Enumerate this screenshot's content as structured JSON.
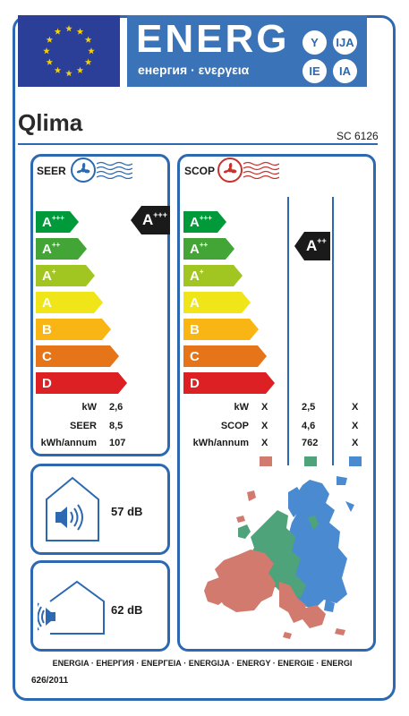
{
  "header": {
    "energy_word": "ENERG",
    "energy_sub": "енергия · ενεργεια",
    "lang_codes": [
      "Y",
      "IJA",
      "IE",
      "IA"
    ],
    "flag_colors": {
      "field": "#2b3f98",
      "stars": "#f5d10a"
    }
  },
  "brand": "Qlima",
  "model": "SC 6126",
  "seer_panel": {
    "title": "SEER",
    "icons": [
      "fan-icon",
      "cool-air-waves-icon"
    ],
    "rating": "A+++",
    "values": [
      {
        "label": "kW",
        "value": "2,6"
      },
      {
        "label": "SEER",
        "value": "8,5"
      },
      {
        "label": "kWh/annum",
        "value": "107"
      }
    ]
  },
  "scop_panel": {
    "title": "SCOP",
    "icons": [
      "fan-icon",
      "warm-air-waves-icon"
    ],
    "rating": "A++",
    "rating_column": "average",
    "values": [
      {
        "label": "kW",
        "colder": "X",
        "average": "2,5",
        "warmer": "X"
      },
      {
        "label": "SCOP",
        "colder": "X",
        "average": "4,6",
        "warmer": "X"
      },
      {
        "label": "kWh/annum",
        "colder": "X",
        "average": "762",
        "warmer": "X"
      }
    ],
    "zone_colors": {
      "colder": "#d27a6e",
      "average": "#4ea37a",
      "warmer": "#4a8ad0"
    }
  },
  "classes": [
    {
      "letter": "A",
      "sup": "+++",
      "color": "#009a3a"
    },
    {
      "letter": "A",
      "sup": "++",
      "color": "#42a535"
    },
    {
      "letter": "A",
      "sup": "+",
      "color": "#a2c621"
    },
    {
      "letter": "A",
      "sup": "",
      "color": "#f0e519"
    },
    {
      "letter": "B",
      "sup": "",
      "color": "#f8b513"
    },
    {
      "letter": "C",
      "sup": "",
      "color": "#e6751a"
    },
    {
      "letter": "D",
      "sup": "",
      "color": "#dd2024"
    }
  ],
  "noise": {
    "indoor": {
      "value": "57",
      "unit": "dB",
      "icon": "indoor-unit-sound-icon"
    },
    "outdoor": {
      "value": "62",
      "unit": "dB",
      "icon": "outdoor-unit-sound-icon"
    }
  },
  "footer": {
    "languages": "ENERGIA · ЕНЕРГИЯ · ΕΝΕΡΓΕΙΑ · ENERGIJA · ENERGY · ENERGIE · ENERGI",
    "regulation": "626/2011"
  }
}
